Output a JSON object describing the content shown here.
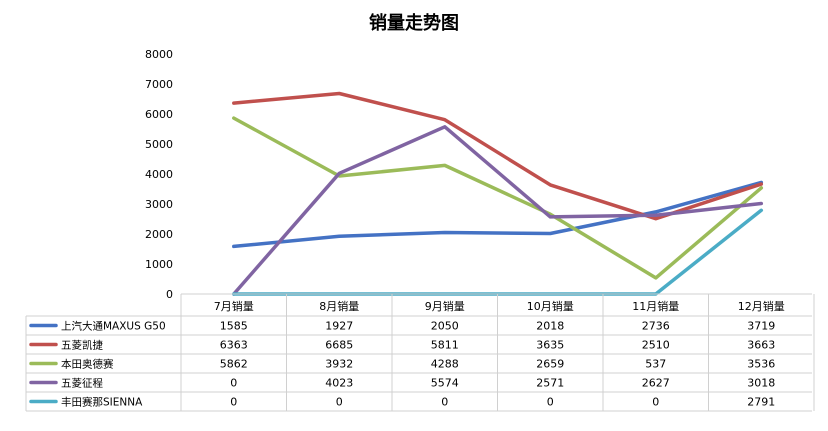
{
  "chart_data": {
    "type": "line",
    "title": "销量走势图",
    "categories": [
      "7月销量",
      "8月销量",
      "9月销量",
      "10月销量",
      "11月销量",
      "12月销量"
    ],
    "ylim": [
      0,
      8000
    ],
    "yticks": [
      0,
      1000,
      2000,
      3000,
      4000,
      5000,
      6000,
      7000,
      8000
    ],
    "grid": false,
    "legend": "data-table",
    "series": [
      {
        "name": "上汽大通MAXUS G50",
        "color": "#4472C4",
        "values": [
          1585,
          1927,
          2050,
          2018,
          2736,
          3719
        ]
      },
      {
        "name": "五菱凯捷",
        "color": "#C0504D",
        "values": [
          6363,
          6685,
          5811,
          3635,
          2510,
          3663
        ]
      },
      {
        "name": "本田奥德赛",
        "color": "#9BBB59",
        "values": [
          5862,
          3932,
          4288,
          2659,
          537,
          3536
        ]
      },
      {
        "name": "五菱征程",
        "color": "#8064A2",
        "values": [
          0,
          4023,
          5574,
          2571,
          2627,
          3018
        ]
      },
      {
        "name": "丰田赛那SIENNA",
        "color": "#4BACC6",
        "values": [
          0,
          0,
          0,
          0,
          0,
          2791
        ]
      }
    ]
  }
}
